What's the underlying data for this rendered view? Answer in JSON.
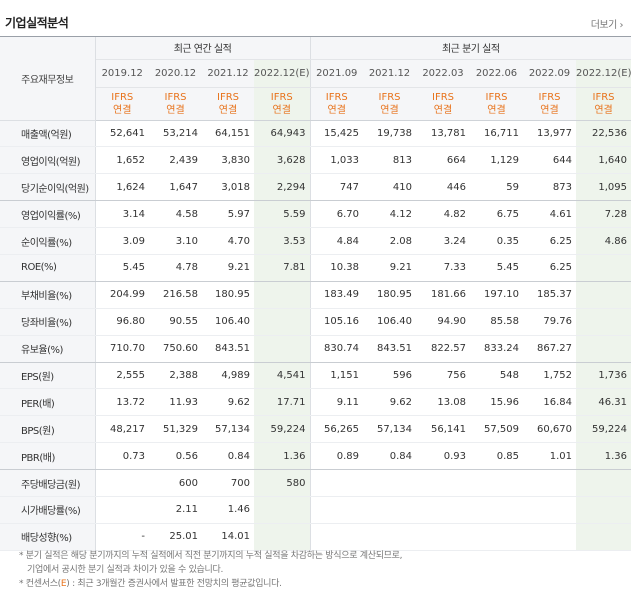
{
  "title": "기업실적분석",
  "more_label": "더보기",
  "corner_label": "주요재무정보",
  "annual_group": "최근 연간 실적",
  "quarter_group": "최근 분기 실적",
  "ifrs_top": "IFRS",
  "ifrs_bottom": "연결",
  "periods": [
    "2019.12",
    "2020.12",
    "2021.12",
    "2022.12(E)",
    "2021.09",
    "2021.12",
    "2022.03",
    "2022.06",
    "2022.09",
    "2022.12(E)"
  ],
  "estimate_columns": [
    3,
    9
  ],
  "rows": [
    {
      "label": "매출액(억원)",
      "values": [
        "52,641",
        "53,214",
        "64,151",
        "64,943",
        "15,425",
        "19,738",
        "13,781",
        "16,711",
        "13,977",
        "22,536"
      ]
    },
    {
      "label": "영업이익(억원)",
      "values": [
        "1,652",
        "2,439",
        "3,830",
        "3,628",
        "1,033",
        "813",
        "664",
        "1,129",
        "644",
        "1,640"
      ]
    },
    {
      "label": "당기순이익(억원)",
      "values": [
        "1,624",
        "1,647",
        "3,018",
        "2,294",
        "747",
        "410",
        "446",
        "59",
        "873",
        "1,095"
      ]
    },
    {
      "label": "영업이익률(%)",
      "values": [
        "3.14",
        "4.58",
        "5.97",
        "5.59",
        "6.70",
        "4.12",
        "4.82",
        "6.75",
        "4.61",
        "7.28"
      ]
    },
    {
      "label": "순이익률(%)",
      "values": [
        "3.09",
        "3.10",
        "4.70",
        "3.53",
        "4.84",
        "2.08",
        "3.24",
        "0.35",
        "6.25",
        "4.86"
      ]
    },
    {
      "label": "ROE(%)",
      "values": [
        "5.45",
        "4.78",
        "9.21",
        "7.81",
        "10.38",
        "9.21",
        "7.33",
        "5.45",
        "6.25",
        ""
      ]
    },
    {
      "label": "부채비율(%)",
      "values": [
        "204.99",
        "216.58",
        "180.95",
        "",
        "183.49",
        "180.95",
        "181.66",
        "197.10",
        "185.37",
        ""
      ]
    },
    {
      "label": "당좌비율(%)",
      "values": [
        "96.80",
        "90.55",
        "106.40",
        "",
        "105.16",
        "106.40",
        "94.90",
        "85.58",
        "79.76",
        ""
      ]
    },
    {
      "label": "유보율(%)",
      "values": [
        "710.70",
        "750.60",
        "843.51",
        "",
        "830.74",
        "843.51",
        "822.57",
        "833.24",
        "867.27",
        ""
      ]
    },
    {
      "label": "EPS(원)",
      "values": [
        "2,555",
        "2,388",
        "4,989",
        "4,541",
        "1,151",
        "596",
        "756",
        "548",
        "1,752",
        "1,736"
      ]
    },
    {
      "label": "PER(배)",
      "values": [
        "13.72",
        "11.93",
        "9.62",
        "17.71",
        "9.11",
        "9.62",
        "13.08",
        "15.96",
        "16.84",
        "46.31"
      ]
    },
    {
      "label": "BPS(원)",
      "values": [
        "48,217",
        "51,329",
        "57,134",
        "59,224",
        "56,265",
        "57,134",
        "56,141",
        "57,509",
        "60,670",
        "59,224"
      ]
    },
    {
      "label": "PBR(배)",
      "values": [
        "0.73",
        "0.56",
        "0.84",
        "1.36",
        "0.89",
        "0.84",
        "0.93",
        "0.85",
        "1.01",
        "1.36"
      ]
    },
    {
      "label": "주당배당금(원)",
      "values": [
        "",
        "600",
        "700",
        "580",
        "",
        "",
        "",
        "",
        "",
        ""
      ]
    },
    {
      "label": "시가배당률(%)",
      "values": [
        "",
        "2.11",
        "1.46",
        "",
        "",
        "",
        "",
        "",
        "",
        ""
      ]
    },
    {
      "label": "배당성향(%)",
      "values": [
        "-",
        "25.01",
        "14.01",
        "",
        "",
        "",
        "",
        "",
        "",
        ""
      ]
    }
  ],
  "section_break_after": [
    2,
    5,
    8,
    12
  ],
  "footnotes": {
    "line1": "* 분기 실적은 해당 분기까지의 누적 실적에서 직전 분기까지의 누적 실적을 차감하는 방식으로 계산되므로,",
    "line2": "기업에서 공시한 분기 실적과 차이가 있을 수 있습니다.",
    "line3_prefix": "* 컨센서스(",
    "line3_mark": "E",
    "line3_suffix": ") : 최근 3개월간 증권사에서 발표한 전망치의 평균값입니다."
  },
  "colors": {
    "accent": "#e8731c",
    "estimate_bg": "#eef4ec",
    "header_bg": "#f5f6f8"
  }
}
